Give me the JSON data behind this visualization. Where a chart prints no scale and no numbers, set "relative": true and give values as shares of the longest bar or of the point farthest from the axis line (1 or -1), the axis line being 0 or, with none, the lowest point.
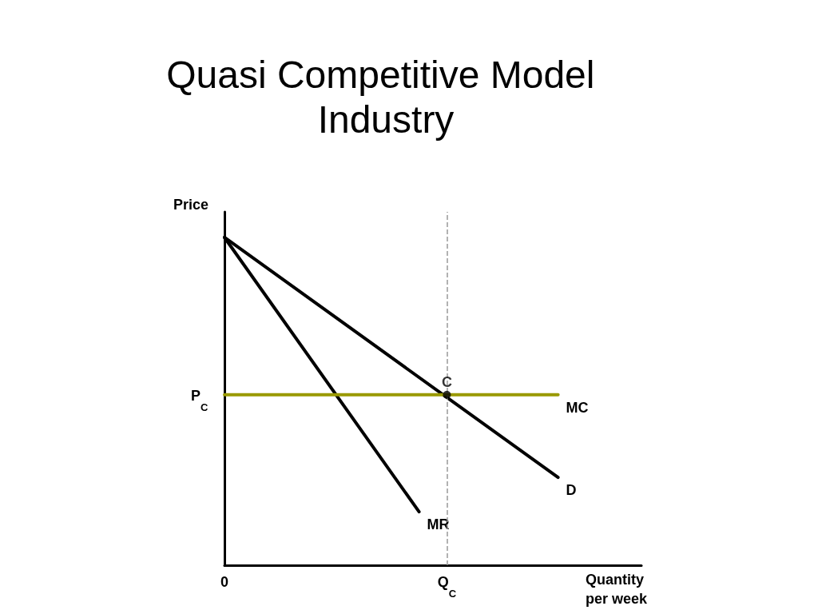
{
  "chart_data": {
    "type": "line",
    "title": "Quasi Competitive Model Industry",
    "xlabel": "Quantity per week",
    "ylabel": "Price",
    "relative": true,
    "tick_labels": "x",
    "marker": "none",
    "line_style": "solid",
    "categories": [
      "0",
      null,
      null,
      null,
      null,
      null,
      null,
      null,
      "Q$_{C}$",
      null,
      null,
      null,
      null,
      null,
      null,
      null
    ],
    "series": [
      {
        "name": "D",
        "color": "#000000",
        "values": [
          1,
          null,
          null,
          null,
          null,
          null,
          null,
          null,
          null,
          null,
          null,
          null,
          0.268,
          null,
          null,
          null
        ]
      },
      {
        "name": "MR",
        "color": "#000000",
        "values": [
          1,
          null,
          null,
          null,
          null,
          null,
          null,
          0.163,
          null,
          null,
          null,
          null,
          null,
          null,
          null,
          null
        ]
      },
      {
        "name": "MC",
        "color": "#999900",
        "values": [
          0.52,
          null,
          null,
          null,
          null,
          null,
          null,
          null,
          null,
          null,
          null,
          null,
          0.52,
          null,
          null,
          null
        ]
      },
      {
        "name": "C",
        "type": "scatter",
        "color": "#000000",
        "marker": "circle",
        "values": [
          null,
          null,
          null,
          null,
          null,
          null,
          null,
          null,
          0.52,
          null,
          null,
          null,
          null,
          null,
          null,
          null
        ]
      }
    ],
    "ref_lines": [
      {
        "axis": "x",
        "value": "Q$_{C}$",
        "color": "#999999",
        "line_style": "dashed"
      }
    ],
    "annotations": [
      "P$_{C}$"
    ]
  }
}
